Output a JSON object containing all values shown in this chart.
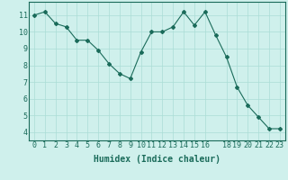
{
  "x": [
    0,
    1,
    2,
    3,
    4,
    5,
    6,
    7,
    8,
    9,
    10,
    11,
    12,
    13,
    14,
    15,
    16,
    17,
    18,
    19,
    20,
    21,
    22,
    23
  ],
  "y": [
    11.0,
    11.2,
    10.5,
    10.3,
    9.5,
    9.5,
    8.9,
    8.1,
    7.5,
    7.2,
    8.8,
    10.0,
    10.0,
    10.3,
    11.2,
    10.4,
    11.2,
    9.8,
    8.5,
    6.7,
    5.6,
    4.9,
    4.2,
    4.2
  ],
  "line_color": "#1a6b5a",
  "marker": "D",
  "marker_size": 2,
  "bg_color": "#cff0ec",
  "grid_color": "#aaddd6",
  "xlabel": "Humidex (Indice chaleur)",
  "xlabel_fontsize": 7,
  "tick_fontsize": 6,
  "ylim": [
    3.5,
    11.8
  ],
  "xlim": [
    -0.5,
    23.5
  ],
  "yticks": [
    4,
    5,
    6,
    7,
    8,
    9,
    10,
    11
  ],
  "xticks": [
    0,
    1,
    2,
    3,
    4,
    5,
    6,
    7,
    8,
    9,
    10,
    11,
    12,
    13,
    14,
    15,
    16,
    18,
    19,
    20,
    21,
    22,
    23
  ],
  "xtick_labels": [
    "0",
    "1",
    "2",
    "3",
    "4",
    "5",
    "6",
    "7",
    "8",
    "9",
    "10",
    "11",
    "12",
    "13",
    "14",
    "15",
    "16",
    "18",
    "19",
    "20",
    "21",
    "22",
    "23"
  ]
}
